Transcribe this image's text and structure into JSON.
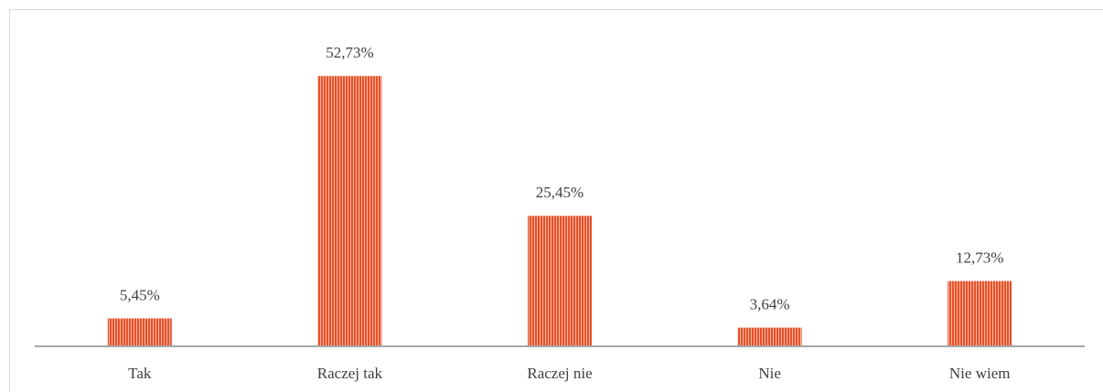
{
  "chart_data": {
    "type": "bar",
    "categories": [
      "Tak",
      "Raczej tak",
      "Raczej nie",
      "Nie",
      "Nie wiem"
    ],
    "values": [
      5.45,
      52.73,
      25.45,
      3.64,
      12.73
    ],
    "value_labels": [
      "5,45%",
      "52,73%",
      "25,45%",
      "3,64%",
      "12,73%"
    ],
    "color": "#e8502a"
  }
}
